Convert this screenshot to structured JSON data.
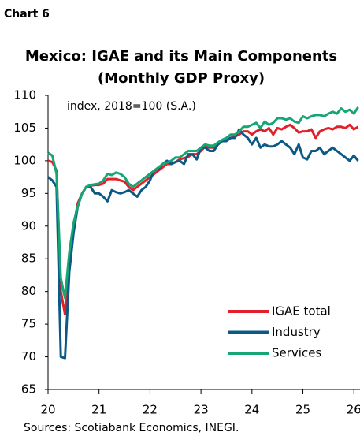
{
  "chart_data": {
    "type": "line",
    "label": "Chart 6",
    "title": [
      "Mexico: IGAE and its Main Components",
      "(Monthly GDP Proxy)"
    ],
    "annotation": "index, 2018=100 (S.A.)",
    "source": "Sources: Scotiabank Economics, INEGI.",
    "x": [
      20,
      20.083,
      20.167,
      20.25,
      20.333,
      20.417,
      20.5,
      20.583,
      20.667,
      20.75,
      20.833,
      20.917,
      21,
      21.083,
      21.167,
      21.25,
      21.333,
      21.417,
      21.5,
      21.583,
      21.667,
      21.75,
      21.833,
      21.917,
      22,
      22.083,
      22.167,
      22.25,
      22.333,
      22.417,
      22.5,
      22.583,
      22.667,
      22.75,
      22.833,
      22.917,
      23,
      23.083,
      23.167,
      23.25,
      23.333,
      23.417,
      23.5,
      23.583,
      23.667,
      23.75,
      23.833,
      23.917,
      24,
      24.083,
      24.167,
      24.25,
      24.333,
      24.417,
      24.5,
      24.583,
      24.667,
      24.75,
      24.833,
      24.917,
      25,
      25.083,
      25.167,
      25.25,
      25.333,
      25.417,
      25.5,
      25.583,
      25.667,
      25.75,
      25.833,
      25.917,
      26,
      26.083
    ],
    "series": [
      {
        "name": "IGAE total",
        "color": "#e3202a",
        "values": [
          100,
          99.8,
          98.5,
          80,
          76.5,
          85,
          90,
          93.5,
          95,
          96,
          96.2,
          96.3,
          96.3,
          96.5,
          97.2,
          97.2,
          97.2,
          97,
          96.8,
          96,
          95.5,
          96,
          96.5,
          97,
          97.5,
          98,
          98.5,
          99,
          99.5,
          99.5,
          99.8,
          100.2,
          100.4,
          100.6,
          101,
          101,
          101.5,
          102.2,
          102,
          102,
          102.5,
          103,
          103.3,
          103.5,
          103.7,
          104,
          104.5,
          104.5,
          104,
          104.5,
          104.8,
          104.5,
          105,
          104,
          105,
          104.8,
          105.2,
          105.5,
          105,
          104.3,
          104.5,
          104.5,
          104.8,
          103.5,
          104.5,
          104.8,
          105,
          104.8,
          105.2,
          105.2,
          105,
          105.5,
          104.8,
          105.2
        ]
      },
      {
        "name": "Industry",
        "color": "#0b5a86",
        "values": [
          97.5,
          97,
          96,
          70,
          69.8,
          83,
          89,
          93,
          95,
          96,
          96,
          95,
          95,
          94.5,
          93.8,
          95.5,
          95.2,
          95,
          95.2,
          95.5,
          95,
          94.5,
          95.5,
          96,
          97,
          98.5,
          98.8,
          99.5,
          100,
          99.5,
          99.8,
          100,
          99.5,
          101,
          101,
          100.2,
          102,
          102,
          101.5,
          101.5,
          102.5,
          103,
          103,
          103.5,
          103.5,
          104.8,
          104,
          103.5,
          102.5,
          103.5,
          102,
          102.5,
          102.2,
          102.2,
          102.5,
          103,
          102.5,
          102,
          101,
          102.5,
          100.5,
          100.2,
          101.5,
          101.5,
          102,
          101,
          101.5,
          102,
          101.5,
          101,
          100.5,
          100,
          100.8,
          100
        ]
      },
      {
        "name": "Services",
        "color": "#16a673",
        "values": [
          101.2,
          100.8,
          98,
          82,
          79,
          86,
          90.5,
          93,
          95,
          96,
          96.3,
          96.4,
          96.5,
          97,
          98,
          97.8,
          98.2,
          98,
          97.5,
          96.5,
          96,
          96.5,
          97,
          97.5,
          98,
          98.5,
          99,
          99.5,
          99.7,
          100,
          100.5,
          100.5,
          101,
          101.5,
          101.5,
          101.5,
          102,
          102.5,
          102.3,
          102.3,
          102.8,
          103.2,
          103.5,
          104,
          104,
          104.5,
          105.2,
          105.2,
          105.5,
          105.8,
          105,
          106,
          105.5,
          105.8,
          106.5,
          106.5,
          106.3,
          106.5,
          106,
          105.8,
          106.8,
          106.5,
          106.8,
          107,
          107,
          106.8,
          107.2,
          107.5,
          107.2,
          108,
          107.5,
          107.8,
          107.2,
          108.2
        ]
      }
    ],
    "xlim": [
      20,
      26.12
    ],
    "xticks": [
      20,
      21,
      22,
      23,
      24,
      25,
      26
    ],
    "ylim": [
      65,
      110
    ],
    "yticks": [
      65,
      70,
      75,
      80,
      85,
      90,
      95,
      100,
      105,
      110
    ],
    "legend": "lower right"
  }
}
